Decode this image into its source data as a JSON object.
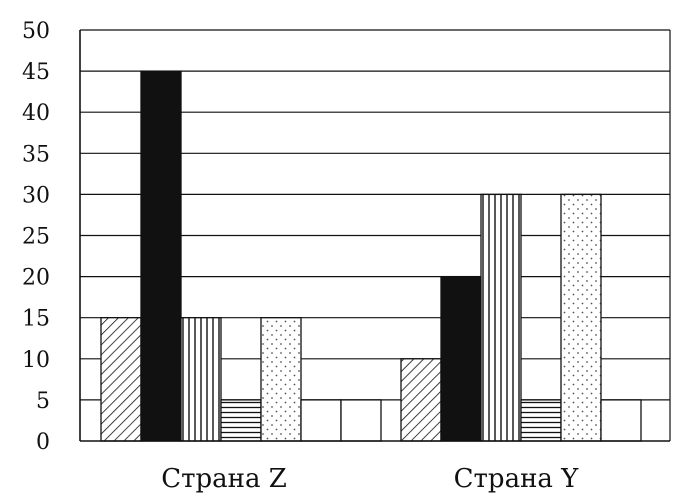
{
  "chart_data": {
    "type": "bar",
    "title": "",
    "xlabel": "",
    "ylabel": "",
    "ylim": [
      0,
      50
    ],
    "yticks": [
      "0",
      "5",
      "10",
      "15",
      "20",
      "25",
      "30",
      "35",
      "40",
      "45",
      "50"
    ],
    "grid": true,
    "legend": "none",
    "categories": [
      "Страна Z",
      "Страна Y"
    ],
    "series": [
      {
        "pattern": "diagonal-hatch",
        "values": [
          15,
          10
        ]
      },
      {
        "pattern": "solid-black",
        "values": [
          45,
          20
        ]
      },
      {
        "pattern": "vertical-stripes",
        "values": [
          15,
          30
        ]
      },
      {
        "pattern": "horizontal-stripes",
        "values": [
          5,
          5
        ]
      },
      {
        "pattern": "dotted",
        "values": [
          15,
          30
        ]
      },
      {
        "pattern": "blank-white",
        "values": [
          5,
          5
        ]
      },
      {
        "pattern": "blank-white",
        "values": [
          5,
          0
        ]
      }
    ],
    "colors": {
      "ink": "#111111",
      "background": "#ffffff"
    }
  }
}
